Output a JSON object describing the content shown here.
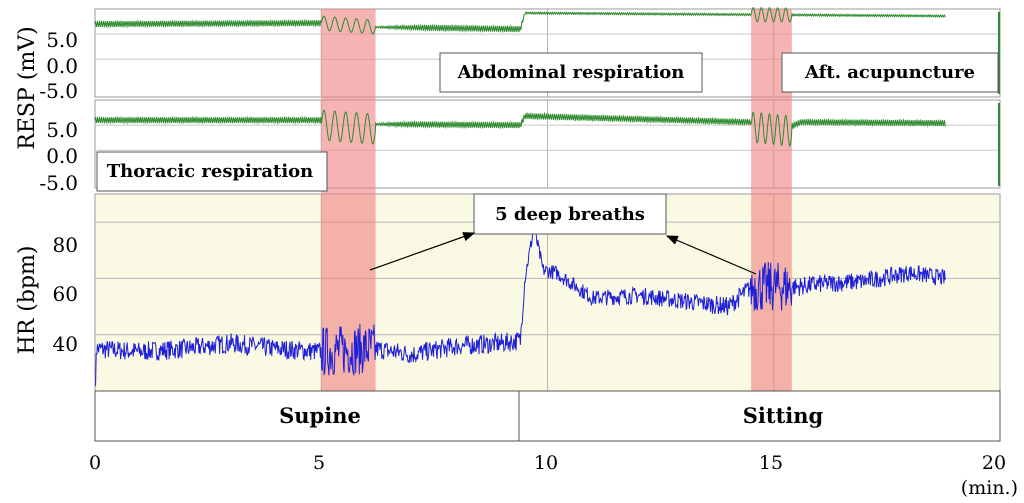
{
  "chart_data": {
    "type": "line",
    "x_axis": {
      "range": [
        0,
        20
      ],
      "ticks": [
        "0",
        "5",
        "10",
        "15",
        "20"
      ],
      "unit_label": "(min.)"
    },
    "resp_axis": {
      "label": "RESP (mV)",
      "ticks": [
        "5.0",
        "0.0",
        "-5.0"
      ]
    },
    "hr_axis": {
      "label": "HR (bpm)",
      "ticks": [
        "80",
        "60",
        "40"
      ],
      "range": [
        20,
        90
      ]
    },
    "shaded_intervals": [
      {
        "start": 5.0,
        "end": 6.2
      },
      {
        "start": 14.5,
        "end": 15.4
      }
    ],
    "posture_segments": [
      {
        "label": "Supine",
        "start": 0,
        "end": 9.4
      },
      {
        "label": "Sitting",
        "start": 9.4,
        "end": 20
      }
    ],
    "annotations": {
      "abdominal": "Abdominal respiration",
      "thoracic": "Thoracic respiration",
      "acupuncture": "Aft. acupuncture",
      "deep_breaths": "5 deep breaths"
    },
    "series": [
      {
        "name": "Abdominal respiration",
        "color": "#2e8b2e",
        "baseline": [
          [
            0,
            7.0
          ],
          [
            5.0,
            7.2
          ],
          [
            6.2,
            6.4
          ],
          [
            9.4,
            6.0
          ],
          [
            9.5,
            9.2
          ],
          [
            18.8,
            8.6
          ]
        ],
        "noise": [
          [
            0,
            0.6
          ],
          [
            5.0,
            0.6
          ],
          [
            6.2,
            0.15
          ],
          [
            7.3,
            0.6
          ],
          [
            9.4,
            0.6
          ],
          [
            9.5,
            0.2
          ],
          [
            18.8,
            0.2
          ]
        ]
      },
      {
        "name": "Thoracic respiration",
        "color": "#2e8b2e",
        "baseline": [
          [
            0,
            6.0
          ],
          [
            5.0,
            6.0
          ],
          [
            6.2,
            5.2
          ],
          [
            9.4,
            5.0
          ],
          [
            9.5,
            6.8
          ],
          [
            14.5,
            5.6
          ],
          [
            15.4,
            4.8
          ],
          [
            15.6,
            5.6
          ],
          [
            18.8,
            5.4
          ]
        ],
        "noise": [
          [
            0,
            0.6
          ],
          [
            5.0,
            0.6
          ],
          [
            6.2,
            0.2
          ],
          [
            7.0,
            0.6
          ],
          [
            18.8,
            0.6
          ]
        ]
      },
      {
        "name": "HR",
        "color": "#1f1fd6",
        "x": [
          0,
          1,
          2,
          3,
          4,
          5,
          6,
          6.2,
          7,
          8,
          9,
          9.4,
          9.5,
          9.7,
          9.9,
          10.2,
          11,
          12,
          13,
          14,
          14.5,
          15,
          15.5,
          16,
          17,
          18,
          18.8
        ],
        "y": [
          35,
          34,
          35,
          37,
          35,
          34,
          35,
          35,
          33,
          36,
          37,
          38,
          60,
          78,
          63,
          62,
          53,
          54,
          52,
          50,
          57,
          57,
          57,
          58,
          59,
          62,
          60
        ],
        "jitter": [
          [
            0,
            3.5
          ],
          [
            9.4,
            3.5
          ],
          [
            9.5,
            2.5
          ],
          [
            14.5,
            3.5
          ],
          [
            18.8,
            3.0
          ]
        ]
      }
    ]
  }
}
